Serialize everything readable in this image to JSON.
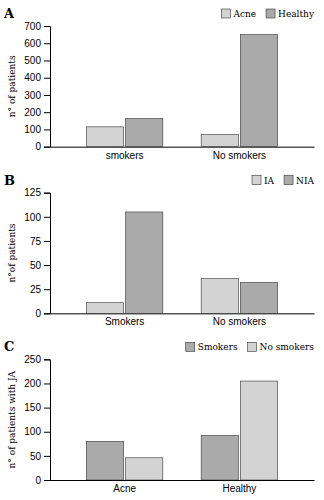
{
  "chart_data": [
    {
      "type": "bar",
      "title": "A",
      "categories": [
        "smokers",
        "No smokers"
      ],
      "series": [
        {
          "name": "Acne",
          "color": "#d3d3d3",
          "values": [
            115,
            70
          ]
        },
        {
          "name": "Healthy",
          "color": "#aaaaaa",
          "values": [
            163,
            650
          ]
        }
      ],
      "ylabel": "n° of patients",
      "ylim": [
        0,
        700
      ],
      "yticks": [
        0,
        100,
        200,
        300,
        400,
        500,
        600,
        700
      ],
      "legend": "upper right"
    },
    {
      "type": "bar",
      "title": "B",
      "categories": [
        "Smokers",
        "No smokers"
      ],
      "series": [
        {
          "name": "IA",
          "color": "#d3d3d3",
          "values": [
            11,
            36
          ]
        },
        {
          "name": "NIA",
          "color": "#aaaaaa",
          "values": [
            105,
            32
          ]
        }
      ],
      "ylabel": "n°of patients",
      "ylim": [
        0,
        125
      ],
      "yticks": [
        0,
        25,
        50,
        75,
        100,
        125
      ],
      "legend": "upper right"
    },
    {
      "type": "bar",
      "title": "C",
      "categories": [
        "Acne",
        "Healthy"
      ],
      "series": [
        {
          "name": "Smokers",
          "color": "#aaaaaa",
          "values": [
            80,
            92
          ]
        },
        {
          "name": "No smokers",
          "color": "#d3d3d3",
          "values": [
            46,
            205
          ]
        }
      ],
      "ylabel": "n° of patients with JA",
      "ylim": [
        0,
        250
      ],
      "yticks": [
        0,
        50,
        100,
        150,
        200,
        250
      ],
      "legend": "upper right"
    }
  ]
}
